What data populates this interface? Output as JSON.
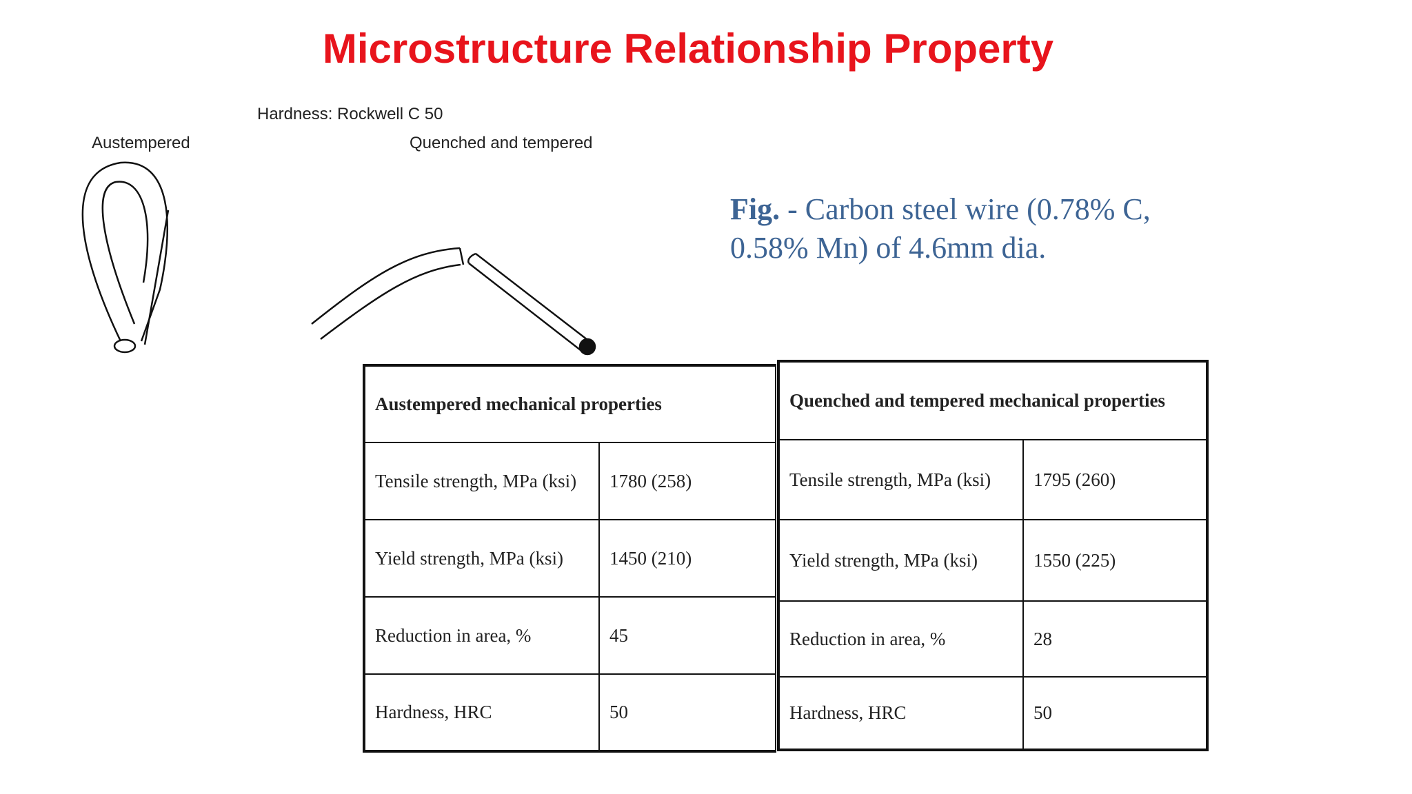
{
  "title": "Microstructure Relationship Property",
  "figure": {
    "hardness_label": "Hardness: Rockwell C 50",
    "left_label": "Austempered",
    "right_label": "Quenched and tempered"
  },
  "caption": {
    "label": "Fig.",
    "text": " - Carbon steel wire (0.78% C, 0.58% Mn) of 4.6mm dia."
  },
  "tables": [
    {
      "header": "Austempered mechanical properties",
      "rows": [
        [
          "Tensile strength, MPa (ksi)",
          "1780 (258)"
        ],
        [
          "Yield strength, MPa (ksi)",
          "1450 (210)"
        ],
        [
          "Reduction in area, %",
          "45"
        ],
        [
          "Hardness, HRC",
          "50"
        ]
      ]
    },
    {
      "header": "Quenched and tempered mechanical properties",
      "rows": [
        [
          "Tensile strength, MPa (ksi)",
          "1795 (260)"
        ],
        [
          "Yield strength, MPa (ksi)",
          "1550 (225)"
        ],
        [
          "Reduction in area, %",
          "28"
        ],
        [
          "Hardness, HRC",
          "50"
        ]
      ]
    }
  ]
}
